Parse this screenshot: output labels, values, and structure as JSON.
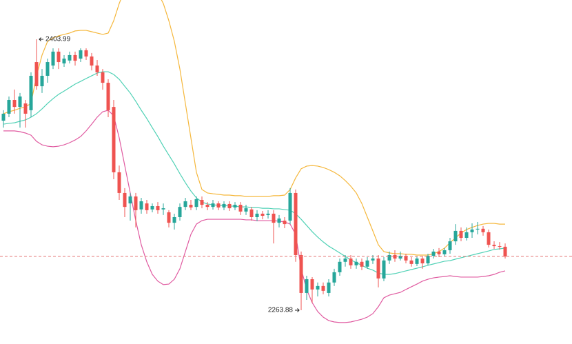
{
  "chart_data": {
    "type": "candlestick",
    "ylim": [
      2246.4,
      2424.3
    ],
    "up_color": "#26a69a",
    "down_color": "#ef5350",
    "price_line": 2291.7,
    "price_line_color": "#e57373",
    "open": [
      2361.9,
      2365.5,
      2372.6,
      2369.0,
      2370.8,
      2367.3,
      2392.2,
      2379.7,
      2385.1,
      2390.4,
      2397.6,
      2391.5,
      2393.0,
      2395.8,
      2394.0,
      2398.3,
      2395.1,
      2390.4,
      2386.9,
      2381.5,
      2369.0,
      2335.2,
      2324.5,
      2319.1,
      2322.7,
      2316.0,
      2319.1,
      2316.0,
      2317.7,
      2316.0,
      2314.5,
      2309.1,
      2312.0,
      2317.3,
      2318.4,
      2317.3,
      2320.9,
      2318.4,
      2317.3,
      2319.1,
      2317.0,
      2318.8,
      2317.0,
      2318.4,
      2314.9,
      2316.0,
      2312.0,
      2313.8,
      2313.1,
      2313.8,
      2309.1,
      2310.2,
      2310.2,
      2324.5,
      2292.4,
      2272.8,
      2279.9,
      2274.6,
      2276.4,
      2272.8,
      2278.2,
      2283.5,
      2288.9,
      2290.6,
      2287.1,
      2288.9,
      2286.4,
      2289.6,
      2290.6,
      2280.3,
      2289.6,
      2292.4,
      2290.6,
      2292.0,
      2289.6,
      2287.8,
      2290.6,
      2288.1,
      2292.0,
      2294.2,
      2292.8,
      2294.9,
      2299.5,
      2304.9,
      2301.3,
      2304.2,
      2305.6,
      2306.0,
      2304.2,
      2297.7,
      2297.0,
      2296.7
    ],
    "high": [
      2367.3,
      2374.4,
      2378.0,
      2376.2,
      2372.6,
      2386.9,
      2403.99,
      2388.6,
      2394.0,
      2399.3,
      2399.3,
      2395.8,
      2397.6,
      2397.6,
      2399.3,
      2399.3,
      2396.9,
      2393.3,
      2388.6,
      2383.3,
      2372.6,
      2338.7,
      2327.0,
      2324.5,
      2324.5,
      2322.0,
      2320.9,
      2319.1,
      2319.8,
      2319.1,
      2315.6,
      2313.8,
      2319.1,
      2322.0,
      2320.9,
      2322.7,
      2322.7,
      2319.8,
      2320.9,
      2320.2,
      2320.2,
      2320.2,
      2319.8,
      2319.8,
      2318.4,
      2317.3,
      2315.6,
      2315.2,
      2315.6,
      2315.6,
      2313.1,
      2312.0,
      2327.0,
      2326.3,
      2294.2,
      2281.7,
      2281.0,
      2278.2,
      2278.2,
      2279.9,
      2285.3,
      2290.6,
      2292.4,
      2292.4,
      2290.6,
      2290.6,
      2291.3,
      2292.4,
      2292.4,
      2291.3,
      2294.2,
      2294.9,
      2294.2,
      2293.1,
      2291.3,
      2291.7,
      2292.0,
      2293.1,
      2295.6,
      2296.0,
      2296.0,
      2301.3,
      2308.4,
      2306.7,
      2306.7,
      2308.8,
      2309.5,
      2307.4,
      2305.6,
      2299.5,
      2299.1,
      2298.4
    ],
    "low": [
      2358.3,
      2363.7,
      2365.5,
      2358.3,
      2358.3,
      2363.7,
      2377.9,
      2376.2,
      2381.5,
      2388.6,
      2388.6,
      2389.7,
      2391.5,
      2390.4,
      2392.2,
      2393.3,
      2387.9,
      2385.1,
      2377.9,
      2363.7,
      2331.6,
      2320.9,
      2312.0,
      2310.2,
      2306.7,
      2313.8,
      2313.8,
      2314.5,
      2313.8,
      2313.1,
      2306.7,
      2305.6,
      2310.2,
      2315.6,
      2315.6,
      2315.6,
      2316.6,
      2315.6,
      2315.9,
      2315.6,
      2315.6,
      2315.2,
      2315.6,
      2313.1,
      2313.1,
      2310.2,
      2309.9,
      2310.9,
      2311.3,
      2298.4,
      2306.7,
      2306.3,
      2308.4,
      2288.9,
      2263.88,
      2269.2,
      2267.8,
      2271.0,
      2272.1,
      2271.0,
      2276.4,
      2281.7,
      2286.4,
      2285.3,
      2285.3,
      2284.6,
      2285.3,
      2287.8,
      2275.7,
      2278.9,
      2287.8,
      2288.9,
      2289.6,
      2288.1,
      2286.4,
      2286.7,
      2285.3,
      2287.1,
      2290.6,
      2291.3,
      2291.7,
      2293.1,
      2297.7,
      2299.5,
      2299.9,
      2301.3,
      2303.1,
      2302.4,
      2296.3,
      2295.6,
      2295.2,
      2290.6
    ],
    "close": [
      2365.5,
      2372.6,
      2369.0,
      2374.4,
      2365.5,
      2385.1,
      2379.7,
      2385.1,
      2392.2,
      2397.6,
      2392.2,
      2394.0,
      2395.8,
      2392.9,
      2398.3,
      2395.1,
      2390.4,
      2386.9,
      2381.5,
      2367.3,
      2335.2,
      2324.5,
      2317.3,
      2322.7,
      2315.6,
      2320.2,
      2315.6,
      2317.7,
      2315.6,
      2316.6,
      2309.1,
      2312.0,
      2317.3,
      2320.2,
      2317.0,
      2321.3,
      2318.4,
      2317.3,
      2319.1,
      2317.0,
      2318.8,
      2316.6,
      2318.4,
      2314.9,
      2316.6,
      2312.0,
      2313.8,
      2312.7,
      2313.8,
      2309.1,
      2311.3,
      2308.4,
      2324.5,
      2292.4,
      2272.8,
      2279.9,
      2274.6,
      2276.4,
      2273.9,
      2278.2,
      2283.5,
      2288.9,
      2290.6,
      2287.1,
      2288.9,
      2286.4,
      2289.6,
      2290.6,
      2280.3,
      2289.6,
      2292.4,
      2290.6,
      2292.0,
      2289.6,
      2287.8,
      2290.6,
      2288.1,
      2292.0,
      2294.2,
      2292.8,
      2294.9,
      2299.5,
      2304.9,
      2301.3,
      2304.2,
      2305.6,
      2306.0,
      2304.2,
      2297.7,
      2297.0,
      2296.7,
      2291.7
    ],
    "overlays": [
      {
        "color": "#f5b73b",
        "values": [
          2365.5,
          2366.5,
          2367.3,
          2368.3,
          2369.0,
          2370.8,
          2385.1,
          2395.8,
          2402.9,
          2404.7,
          2405.8,
          2406.5,
          2407.2,
          2408.3,
          2408.6,
          2408.6,
          2407.9,
          2407.2,
          2406.5,
          2407.2,
          2413.6,
          2422.5,
          2429.6,
          2433.2,
          2435.0,
          2435.0,
          2435.0,
          2433.2,
          2427.9,
          2422.5,
          2413.6,
          2402.9,
          2388.6,
          2370.8,
          2353.0,
          2335.2,
          2326.3,
          2324.5,
          2324.1,
          2323.8,
          2323.4,
          2323.4,
          2323.1,
          2323.1,
          2322.7,
          2322.7,
          2322.7,
          2322.7,
          2322.7,
          2323.1,
          2323.1,
          2323.4,
          2326.3,
          2332.3,
          2337.0,
          2338.4,
          2338.7,
          2338.4,
          2337.7,
          2336.6,
          2335.2,
          2333.4,
          2330.9,
          2328.0,
          2324.5,
          2319.1,
          2312.0,
          2304.9,
          2297.7,
          2294.2,
          2293.5,
          2293.1,
          2293.1,
          2292.8,
          2292.8,
          2292.4,
          2292.4,
          2292.4,
          2293.1,
          2294.2,
          2296.0,
          2298.8,
          2301.3,
          2303.8,
          2305.6,
          2306.7,
          2307.7,
          2308.4,
          2308.8,
          2308.8,
          2308.4,
          2308.4
        ]
      },
      {
        "color": "#4fd1b5",
        "values": [
          2360.1,
          2360.5,
          2360.8,
          2361.6,
          2362.3,
          2363.7,
          2365.5,
          2368.0,
          2370.8,
          2373.3,
          2375.5,
          2377.2,
          2379.0,
          2380.8,
          2382.2,
          2383.7,
          2385.1,
          2386.5,
          2387.2,
          2387.2,
          2385.8,
          2383.3,
          2379.7,
          2376.2,
          2371.9,
          2367.3,
          2363.0,
          2358.3,
          2353.7,
          2348.7,
          2344.1,
          2339.5,
          2334.5,
          2329.8,
          2325.5,
          2322.0,
          2319.8,
          2318.8,
          2318.4,
          2318.1,
          2318.1,
          2317.7,
          2317.7,
          2317.3,
          2317.3,
          2317.0,
          2317.0,
          2316.6,
          2316.6,
          2316.3,
          2316.3,
          2315.9,
          2315.6,
          2313.8,
          2310.9,
          2307.7,
          2304.5,
          2301.7,
          2299.2,
          2297.0,
          2295.3,
          2293.5,
          2291.7,
          2289.9,
          2288.5,
          2287.1,
          2285.6,
          2284.6,
          2283.1,
          2282.4,
          2282.4,
          2282.8,
          2283.5,
          2284.2,
          2284.9,
          2285.6,
          2286.3,
          2287.1,
          2287.8,
          2288.5,
          2289.2,
          2289.5,
          2290.3,
          2291.0,
          2291.7,
          2292.4,
          2293.1,
          2293.8,
          2294.5,
          2295.3,
          2295.6,
          2296.0
        ]
      },
      {
        "color": "#e05aa0",
        "values": [
          2356.6,
          2356.6,
          2356.6,
          2356.2,
          2355.5,
          2354.4,
          2351.2,
          2349.4,
          2348.7,
          2348.4,
          2348.7,
          2349.4,
          2350.5,
          2351.9,
          2353.7,
          2356.6,
          2360.1,
          2363.7,
          2366.5,
          2367.3,
          2364.4,
          2353.0,
          2338.7,
          2324.5,
          2310.2,
          2297.7,
          2288.9,
          2282.4,
          2278.9,
          2277.1,
          2277.4,
          2279.9,
          2285.3,
          2294.2,
          2303.1,
          2308.4,
          2310.2,
          2310.9,
          2310.9,
          2310.9,
          2310.9,
          2310.9,
          2310.9,
          2310.9,
          2310.6,
          2310.6,
          2310.2,
          2310.2,
          2310.2,
          2310.2,
          2309.9,
          2309.5,
          2308.4,
          2303.1,
          2285.3,
          2274.6,
          2267.8,
          2263.2,
          2260.3,
          2258.5,
          2257.8,
          2257.5,
          2257.5,
          2257.8,
          2258.5,
          2259.2,
          2260.3,
          2262.1,
          2265.7,
          2270.3,
          2271.7,
          2272.4,
          2273.1,
          2274.6,
          2276.0,
          2277.4,
          2278.9,
          2279.9,
          2280.6,
          2281.0,
          2281.3,
          2281.7,
          2281.3,
          2281.0,
          2281.0,
          2281.0,
          2281.0,
          2281.3,
          2281.7,
          2282.4,
          2283.5,
          2284.2
        ]
      }
    ],
    "high_label_index": 6,
    "low_label_index": 54
  }
}
